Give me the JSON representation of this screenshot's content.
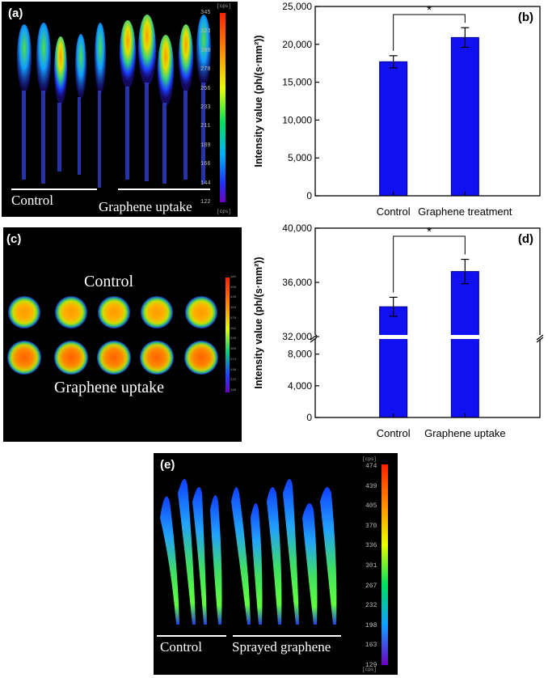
{
  "panels": {
    "a": {
      "label": "(a)",
      "group_labels": [
        "Control",
        "Graphene uptake"
      ],
      "colorbar": {
        "unit": "[cps]",
        "ticks": [
          "345",
          "323",
          "300",
          "278",
          "256",
          "233",
          "211",
          "189",
          "166",
          "144",
          "122"
        ]
      }
    },
    "c": {
      "label": "(c)",
      "group_labels": [
        "Control",
        "Graphene uptake"
      ],
      "colorbar": {
        "unit": "[cps]",
        "ticks": [
          "482",
          "456",
          "430",
          "404",
          "378",
          "352",
          "326",
          "300",
          "274",
          "248",
          "222",
          "196"
        ]
      }
    },
    "e": {
      "label": "(e)",
      "group_labels": [
        "Control",
        "Sprayed graphene"
      ],
      "colorbar": {
        "unit": "[cps]",
        "ticks": [
          "474",
          "439",
          "405",
          "370",
          "336",
          "301",
          "267",
          "232",
          "198",
          "163",
          "129"
        ]
      }
    }
  },
  "colors": {
    "bar": "#1010f0",
    "bar_edge": "#00008a"
  },
  "chart_data": [
    {
      "panel": "(b)",
      "type": "bar",
      "categories": [
        "Control",
        "Graphene treatment"
      ],
      "values": [
        17700,
        20900
      ],
      "errors": [
        800,
        1300
      ],
      "ylabel": "Intensity value (ph/(s·mm²))",
      "ylim": [
        0,
        25000
      ],
      "yticks": [
        0,
        5000,
        10000,
        15000,
        20000,
        25000
      ],
      "ytick_labels": [
        "0",
        "5,000",
        "10,000",
        "15,000",
        "20,000",
        "25,000"
      ],
      "significance": "*"
    },
    {
      "panel": "(d)",
      "type": "bar",
      "categories": [
        "Control",
        "Graphene uptake"
      ],
      "values": [
        34200,
        36800
      ],
      "errors": [
        700,
        900
      ],
      "ylabel": "Intensity value (ph/(s·mm²))",
      "axis_break": [
        9600,
        32000
      ],
      "ylim": [
        0,
        40000
      ],
      "yticks": [
        0,
        4000,
        8000,
        32000,
        36000,
        40000
      ],
      "ytick_labels": [
        "0",
        "4,000",
        "8,000",
        "32,000",
        "36,000",
        "40,000"
      ],
      "significance": "*"
    }
  ]
}
